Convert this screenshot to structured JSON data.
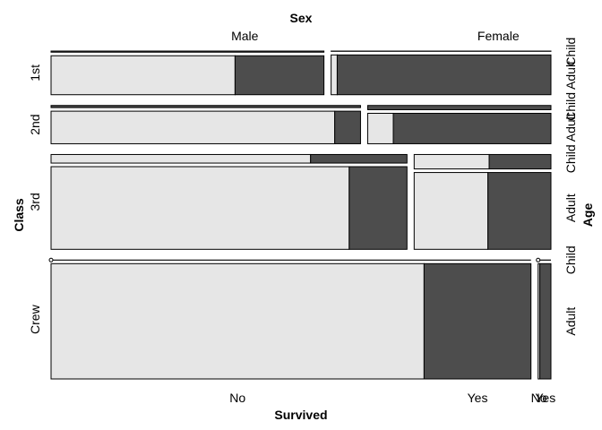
{
  "chart_data": {
    "type": "mosaic",
    "title": "",
    "variables": {
      "row": "Class",
      "column": "Sex",
      "row_sub": "Age",
      "column_sub": "Survived"
    },
    "classes": [
      "1st",
      "2nd",
      "3rd",
      "Crew"
    ],
    "sexes": [
      "Male",
      "Female"
    ],
    "ages": [
      "Child",
      "Adult"
    ],
    "survived": [
      "No",
      "Yes"
    ],
    "counts": {
      "1st": {
        "Male": {
          "Child": {
            "No": 0,
            "Yes": 5
          },
          "Adult": {
            "No": 118,
            "Yes": 57
          }
        },
        "Female": {
          "Child": {
            "No": 0,
            "Yes": 1
          },
          "Adult": {
            "No": 4,
            "Yes": 140
          }
        }
      },
      "2nd": {
        "Male": {
          "Child": {
            "No": 0,
            "Yes": 11
          },
          "Adult": {
            "No": 154,
            "Yes": 14
          }
        },
        "Female": {
          "Child": {
            "No": 0,
            "Yes": 13
          },
          "Adult": {
            "No": 13,
            "Yes": 80
          }
        }
      },
      "3rd": {
        "Male": {
          "Child": {
            "No": 35,
            "Yes": 13
          },
          "Adult": {
            "No": 387,
            "Yes": 75
          }
        },
        "Female": {
          "Child": {
            "No": 17,
            "Yes": 14
          },
          "Adult": {
            "No": 89,
            "Yes": 76
          }
        }
      },
      "Crew": {
        "Male": {
          "Child": {
            "No": 0,
            "Yes": 0
          },
          "Adult": {
            "No": 670,
            "Yes": 192
          }
        },
        "Female": {
          "Child": {
            "No": 0,
            "Yes": 0
          },
          "Adult": {
            "No": 3,
            "Yes": 20
          }
        }
      }
    },
    "colors": {
      "No": "#e6e6e6",
      "Yes": "#4d4d4d"
    },
    "x_labels": [
      "No",
      "Yes",
      "No",
      "Yes"
    ],
    "labels": {
      "top_var": "Sex",
      "bottom_var": "Survived",
      "left_var": "Class",
      "right_var": "Age"
    }
  }
}
